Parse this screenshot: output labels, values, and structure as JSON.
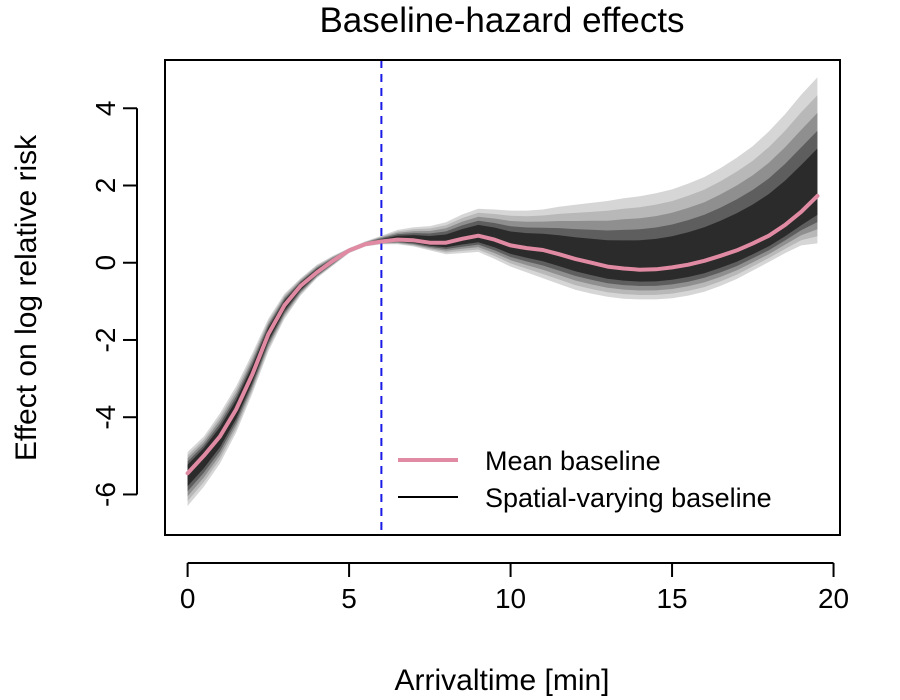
{
  "chart_data": {
    "type": "line",
    "title": "Baseline-hazard effects",
    "xlabel": "Arrivaltime [min]",
    "ylabel": "Effect on log relative risk",
    "xlim": [
      -0.7,
      20.2
    ],
    "ylim": [
      -7.05,
      5.25
    ],
    "x_ticks": [
      0,
      5,
      10,
      15,
      20
    ],
    "y_ticks": [
      -6,
      -4,
      -2,
      0,
      2,
      4
    ],
    "x_tick_labels": [
      "0",
      "5",
      "10",
      "15",
      "20"
    ],
    "y_tick_labels": [
      "-6",
      "-4",
      "-2",
      "0",
      "2",
      "4"
    ],
    "grid": false,
    "legend_position": "bottom-right",
    "reference_line": {
      "x": 6,
      "color": "#1a1ae6",
      "style": "dashed"
    },
    "series": [
      {
        "name": "Mean baseline",
        "color": "#e08aa3",
        "x": [
          0,
          0.5,
          1,
          1.5,
          2,
          2.5,
          3,
          3.5,
          4,
          4.5,
          5,
          5.5,
          6,
          6.5,
          7,
          7.5,
          8,
          8.5,
          9,
          9.5,
          10,
          10.5,
          11,
          11.5,
          12,
          12.5,
          13,
          13.5,
          14,
          14.5,
          15,
          15.5,
          16,
          16.5,
          17,
          17.5,
          18,
          18.5,
          19,
          19.5
        ],
        "y": [
          -5.45,
          -5.0,
          -4.5,
          -3.8,
          -2.9,
          -1.85,
          -1.1,
          -0.6,
          -0.25,
          0.05,
          0.32,
          0.48,
          0.55,
          0.6,
          0.58,
          0.52,
          0.52,
          0.62,
          0.7,
          0.6,
          0.45,
          0.38,
          0.33,
          0.22,
          0.1,
          0.0,
          -0.1,
          -0.15,
          -0.18,
          -0.17,
          -0.12,
          -0.05,
          0.05,
          0.18,
          0.32,
          0.5,
          0.7,
          0.98,
          1.32,
          1.73
        ]
      },
      {
        "name": "Spatial-varying baseline",
        "color": "#000000",
        "band_lower": [
          -6.3,
          -5.8,
          -5.2,
          -4.4,
          -3.4,
          -2.3,
          -1.45,
          -0.85,
          -0.4,
          -0.08,
          0.25,
          0.42,
          0.48,
          0.48,
          0.42,
          0.32,
          0.22,
          0.25,
          0.28,
          0.1,
          -0.1,
          -0.25,
          -0.4,
          -0.55,
          -0.7,
          -0.8,
          -0.88,
          -0.93,
          -0.95,
          -0.95,
          -0.92,
          -0.85,
          -0.75,
          -0.6,
          -0.42,
          -0.2,
          0.02,
          0.25,
          0.45,
          0.5
        ],
        "band_upper": [
          -4.9,
          -4.5,
          -3.9,
          -3.2,
          -2.35,
          -1.45,
          -0.8,
          -0.4,
          -0.05,
          0.18,
          0.38,
          0.55,
          0.7,
          0.85,
          0.92,
          0.95,
          1.05,
          1.25,
          1.4,
          1.38,
          1.35,
          1.35,
          1.38,
          1.45,
          1.5,
          1.55,
          1.6,
          1.67,
          1.72,
          1.8,
          1.9,
          2.05,
          2.22,
          2.45,
          2.72,
          3.02,
          3.4,
          3.85,
          4.35,
          4.8
        ]
      }
    ]
  }
}
